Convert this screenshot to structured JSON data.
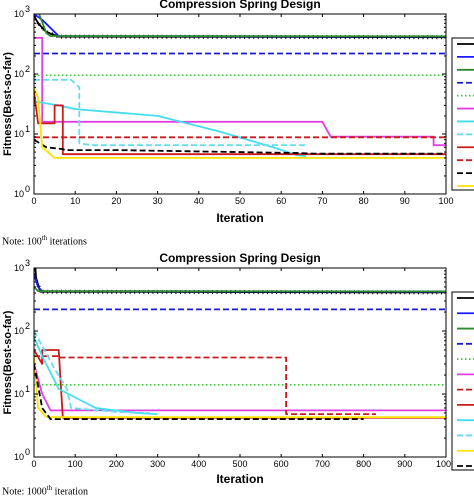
{
  "chart_data": [
    {
      "type": "line",
      "title": "Compression Spring Design",
      "xlabel": "Iteration",
      "ylabel": "Fitness(Best-so-far)",
      "yscale": "log",
      "xlim": [
        0,
        100
      ],
      "ylim": [
        1,
        1000
      ],
      "xticks": [
        "0",
        "10",
        "20",
        "30",
        "40",
        "50",
        "60",
        "70",
        "80",
        "90",
        "100"
      ],
      "yticks": [
        {
          "base": "10",
          "exp": "0"
        },
        {
          "base": "10",
          "exp": "1"
        },
        {
          "base": "10",
          "exp": "2"
        },
        {
          "base": "10",
          "exp": "3"
        }
      ],
      "legend": "right (entries cropped)",
      "series": [
        {
          "color": "#000000",
          "style": "solid-marker",
          "x": [
            0,
            1,
            3,
            6,
            100
          ],
          "y": [
            950,
            700,
            500,
            420,
            410
          ]
        },
        {
          "color": "#1a1aff",
          "style": "solid",
          "x": [
            0,
            2,
            6,
            100
          ],
          "y": [
            1000,
            800,
            430,
            420
          ]
        },
        {
          "color": "#2d8a2d",
          "style": "solid",
          "x": [
            0,
            1,
            3,
            4,
            100
          ],
          "y": [
            1100,
            1100,
            480,
            430,
            425
          ]
        },
        {
          "color": "#1a1ad6",
          "style": "dashed",
          "x": [
            0,
            100
          ],
          "y": [
            220,
            220
          ]
        },
        {
          "color": "#33cc33",
          "style": "dotted",
          "x": [
            0,
            100
          ],
          "y": [
            95,
            95
          ]
        },
        {
          "color": "#e040e0",
          "style": "solid",
          "x": [
            0,
            2,
            2,
            70,
            72,
            97,
            97,
            100
          ],
          "y": [
            400,
            400,
            16,
            16,
            9,
            9,
            6.5,
            6.5
          ]
        },
        {
          "color": "#44ddee",
          "style": "solid",
          "x": [
            0,
            6,
            10,
            30,
            45,
            58,
            64,
            66
          ],
          "y": [
            35,
            30,
            26,
            20,
            11,
            6,
            4.4,
            4.3
          ]
        },
        {
          "color": "#66ddee",
          "style": "dashed",
          "x": [
            0,
            5,
            9,
            11,
            11,
            14,
            66
          ],
          "y": [
            80,
            80,
            80,
            60,
            7,
            6.5,
            6.5
          ]
        },
        {
          "color": "#cc1a1a",
          "style": "solid",
          "x": [
            0,
            1,
            5,
            5,
            7,
            7,
            100
          ],
          "y": [
            50,
            15,
            15,
            30,
            30,
            4.6,
            4.6
          ]
        },
        {
          "color": "#cc1a1a",
          "style": "dashed",
          "x": [
            0,
            100
          ],
          "y": [
            8.8,
            8.8
          ]
        },
        {
          "color": "#000000",
          "style": "dashed",
          "x": [
            0,
            3,
            5,
            7,
            7.5,
            20,
            65,
            68,
            100
          ],
          "y": [
            8,
            6,
            5.8,
            5.6,
            5.4,
            5.4,
            4.8,
            4.7,
            4.7
          ]
        },
        {
          "color": "#ffe100",
          "style": "solid",
          "x": [
            0,
            1,
            2,
            5,
            100
          ],
          "y": [
            60,
            40,
            6,
            4.0,
            4.0
          ]
        }
      ]
    },
    {
      "type": "line",
      "title": "Compression Spring Design",
      "xlabel": "Iteration",
      "ylabel": "Fitness(Best-so-far)",
      "yscale": "log",
      "xlim": [
        0,
        1000
      ],
      "ylim": [
        1,
        1000
      ],
      "xticks": [
        "0",
        "100",
        "200",
        "300",
        "400",
        "500",
        "600",
        "700",
        "800",
        "900",
        "1000"
      ],
      "yticks": [
        {
          "base": "10",
          "exp": "0"
        },
        {
          "base": "10",
          "exp": "1"
        },
        {
          "base": "10",
          "exp": "2"
        },
        {
          "base": "10",
          "exp": "3"
        }
      ],
      "legend": "right (entries cropped)",
      "series": [
        {
          "color": "#000000",
          "style": "solid-marker",
          "x": [
            0,
            5,
            15,
            1000
          ],
          "y": [
            2000,
            700,
            420,
            410
          ]
        },
        {
          "color": "#1a1aff",
          "style": "solid",
          "x": [
            0,
            10,
            20,
            1000
          ],
          "y": [
            800,
            500,
            430,
            420
          ]
        },
        {
          "color": "#2d8a2d",
          "style": "solid",
          "x": [
            0,
            10,
            1000
          ],
          "y": [
            500,
            430,
            425
          ]
        },
        {
          "color": "#1a1ad6",
          "style": "dashed",
          "x": [
            0,
            1000
          ],
          "y": [
            220,
            220
          ]
        },
        {
          "color": "#33cc33",
          "style": "dotted",
          "x": [
            0,
            1000
          ],
          "y": [
            14,
            14
          ]
        },
        {
          "color": "#e040e0",
          "style": "solid",
          "x": [
            0,
            20,
            40,
            1000
          ],
          "y": [
            30,
            10,
            5.5,
            5.5
          ]
        },
        {
          "color": "#cc1a1a",
          "style": "dashed",
          "x": [
            0,
            60,
            60,
            612,
            612,
            830
          ],
          "y": [
            40,
            40,
            38,
            38,
            4.8,
            4.8
          ]
        },
        {
          "color": "#cc1a1a",
          "style": "solid",
          "x": [
            0,
            20,
            20,
            60,
            70,
            1000
          ],
          "y": [
            50,
            30,
            50,
            50,
            4.2,
            4.2
          ]
        },
        {
          "color": "#44ddee",
          "style": "solid",
          "x": [
            0,
            20,
            60,
            150,
            250,
            300
          ],
          "y": [
            80,
            40,
            12,
            6,
            5,
            4.8
          ]
        },
        {
          "color": "#66ddee",
          "style": "dashed",
          "x": [
            0,
            50,
            80,
            90,
            200,
            280
          ],
          "y": [
            100,
            25,
            12,
            6,
            5.2,
            5
          ]
        },
        {
          "color": "#ffe100",
          "style": "solid",
          "x": [
            0,
            10,
            30,
            1000
          ],
          "y": [
            40,
            6,
            4.3,
            4.3
          ]
        },
        {
          "color": "#000000",
          "style": "dashed",
          "x": [
            0,
            20,
            40,
            120,
            800
          ],
          "y": [
            30,
            6,
            4.0,
            4.0,
            4.0
          ]
        }
      ]
    }
  ],
  "notes": [
    {
      "prefix": "Note: 100",
      "sup": "th",
      "suffix": " iterations"
    },
    {
      "prefix": "Note: 1000",
      "sup": "th",
      "suffix": " iteration"
    }
  ]
}
